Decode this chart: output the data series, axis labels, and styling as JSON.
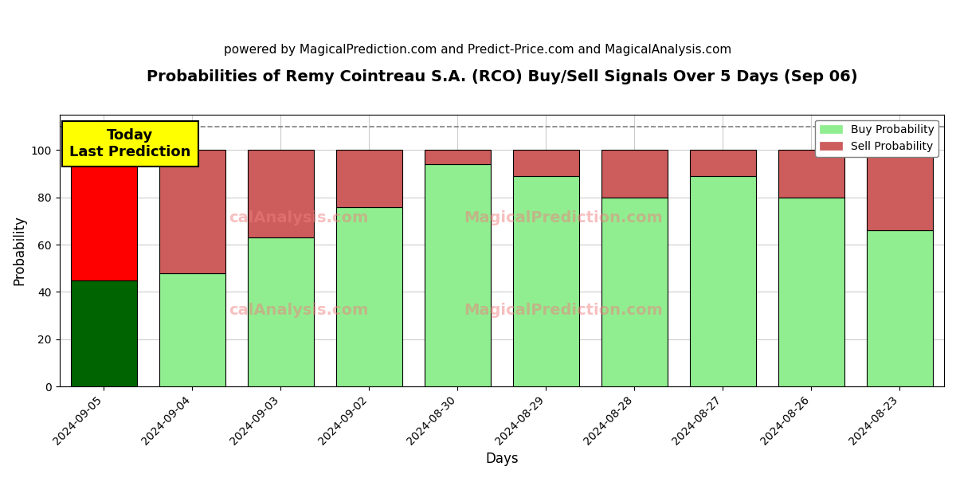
{
  "title": "Probabilities of Remy Cointreau S.A. (RCO) Buy/Sell Signals Over 5 Days (Sep 06)",
  "subtitle": "powered by MagicalPrediction.com and Predict-Price.com and MagicalAnalysis.com",
  "xlabel": "Days",
  "ylabel": "Probability",
  "categories": [
    "2024-09-05",
    "2024-09-04",
    "2024-09-03",
    "2024-09-02",
    "2024-08-30",
    "2024-08-29",
    "2024-08-28",
    "2024-08-27",
    "2024-08-26",
    "2024-08-23"
  ],
  "buy_values": [
    45,
    48,
    63,
    76,
    94,
    89,
    80,
    89,
    80,
    66
  ],
  "sell_values": [
    55,
    52,
    37,
    24,
    6,
    11,
    20,
    11,
    20,
    34
  ],
  "buy_colors_special": [
    "#006400",
    "#90EE90",
    "#90EE90",
    "#90EE90",
    "#90EE90",
    "#90EE90",
    "#90EE90",
    "#90EE90",
    "#90EE90",
    "#90EE90"
  ],
  "sell_colors_special": [
    "#FF0000",
    "#CD5C5C",
    "#CD5C5C",
    "#CD5C5C",
    "#CD5C5C",
    "#CD5C5C",
    "#CD5C5C",
    "#CD5C5C",
    "#CD5C5C",
    "#CD5C5C"
  ],
  "sell_color_legend": "#CD5C5C",
  "buy_color_legend": "#90EE90",
  "dashed_line_y": 110,
  "ylim": [
    0,
    115
  ],
  "yticks": [
    0,
    20,
    40,
    60,
    80,
    100
  ],
  "annotation_text": "Today\nLast Prediction",
  "annotation_fontsize": 13,
  "title_fontsize": 14,
  "subtitle_fontsize": 11,
  "background_color": "#ffffff",
  "grid_color": "#cccccc",
  "bar_edge_color": "#000000",
  "bar_width": 0.75
}
